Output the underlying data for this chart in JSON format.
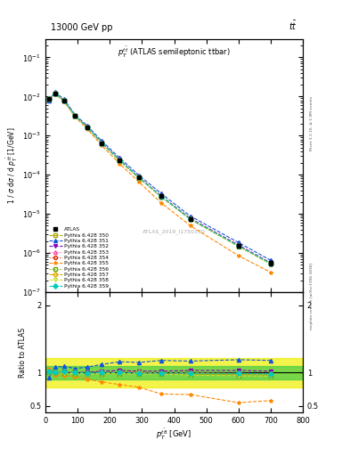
{
  "title_top": "13000 GeV pp",
  "title_right": "tt",
  "plot_title": "$p_T^{t\\bar{t}}$ (ATLAS semileptonic ttbar)",
  "ylabel_main": "1 / $\\sigma$ d$\\sigma$ / d $p_T^{t\\bar{t}}$ [1/GeV]",
  "ylabel_ratio": "Ratio to ATLAS",
  "xlabel": "$p_T^{t\\bar{t}{\\rm{l}}}$ [GeV]",
  "right_label1": "Rivet 3.1.10, ≥ 1.9M events",
  "right_label2": "mcplots.cern.ch [arXiv:1306.3436]",
  "watermark": "ATLAS_2019_I1750330",
  "x_centers": [
    10,
    30,
    57.5,
    92.5,
    130,
    175,
    230,
    290,
    360,
    450,
    600,
    700
  ],
  "atlas_y": [
    0.0085,
    0.012,
    0.0078,
    0.0032,
    0.00165,
    0.00065,
    0.000235,
    8.5e-05,
    2.8e-05,
    7.5e-06,
    1.55e-06,
    5.5e-07
  ],
  "atlas_yerr": [
    0.0005,
    0.0005,
    0.0004,
    0.00015,
    8e-05,
    3e-05,
    1.1e-05,
    4e-06,
    1.5e-06,
    5e-07,
    1.5e-07,
    6e-08
  ],
  "series": [
    {
      "label": "Pythia 6.428 350",
      "color": "#aaaa00",
      "linestyle": "--",
      "marker": "s",
      "fillstyle": "none",
      "y": [
        0.0086,
        0.0118,
        0.0077,
        0.00315,
        0.00163,
        0.00064,
        0.000232,
        8.3e-05,
        2.75e-05,
        7.3e-06,
        1.5e-06,
        5.3e-07
      ],
      "ratio": [
        1.01,
        0.98,
        0.99,
        0.98,
        0.99,
        0.98,
        0.99,
        0.98,
        0.98,
        0.97,
        0.97,
        0.96
      ]
    },
    {
      "label": "Pythia 6.428 351",
      "color": "#1155dd",
      "linestyle": "--",
      "marker": "^",
      "fillstyle": "full",
      "y": [
        0.0078,
        0.013,
        0.0085,
        0.0034,
        0.00178,
        0.00073,
        0.000272,
        9.8e-05,
        3.3e-05,
        8.8e-06,
        1.85e-06,
        6.5e-07
      ],
      "ratio": [
        0.92,
        1.08,
        1.09,
        1.06,
        1.08,
        1.12,
        1.16,
        1.15,
        1.18,
        1.17,
        1.19,
        1.18
      ]
    },
    {
      "label": "Pythia 6.428 352",
      "color": "#8800bb",
      "linestyle": "--",
      "marker": "v",
      "fillstyle": "full",
      "y": [
        0.0085,
        0.012,
        0.0079,
        0.0032,
        0.00165,
        0.00066,
        0.000243,
        8.7e-05,
        2.85e-05,
        7.7e-06,
        1.6e-06,
        5.6e-07
      ],
      "ratio": [
        1.0,
        1.0,
        1.01,
        1.0,
        1.0,
        1.02,
        1.03,
        1.02,
        1.02,
        1.03,
        1.03,
        1.02
      ]
    },
    {
      "label": "Pythia 6.428 353",
      "color": "#ff44aa",
      "linestyle": ":",
      "marker": "^",
      "fillstyle": "none",
      "y": [
        0.0086,
        0.012,
        0.0078,
        0.00318,
        0.00162,
        0.00065,
        0.000236,
        8.5e-05,
        2.78e-05,
        7.4e-06,
        1.52e-06,
        5.4e-07
      ],
      "ratio": [
        1.01,
        1.0,
        1.0,
        0.994,
        0.98,
        1.0,
        1.0,
        1.0,
        0.99,
        0.99,
        0.98,
        0.98
      ]
    },
    {
      "label": "Pythia 6.428 354",
      "color": "#dd2200",
      "linestyle": ":",
      "marker": "o",
      "fillstyle": "none",
      "y": [
        0.0086,
        0.012,
        0.0078,
        0.0032,
        0.00163,
        0.00065,
        0.000235,
        8.5e-05,
        2.78e-05,
        7.5e-06,
        1.53e-06,
        5.4e-07
      ],
      "ratio": [
        1.01,
        1.0,
        1.01,
        1.0,
        0.99,
        1.0,
        1.0,
        1.0,
        0.99,
        1.0,
        0.99,
        0.98
      ]
    },
    {
      "label": "Pythia 6.428 355",
      "color": "#ff8800",
      "linestyle": "--",
      "marker": "*",
      "fillstyle": "full",
      "y": [
        0.009,
        0.0115,
        0.0074,
        0.003,
        0.00148,
        0.00056,
        0.000193,
        6.6e-05,
        1.9e-05,
        5e-06,
        8.5e-07,
        3.2e-07
      ],
      "ratio": [
        1.06,
        0.96,
        0.95,
        0.94,
        0.9,
        0.86,
        0.82,
        0.78,
        0.68,
        0.67,
        0.55,
        0.58
      ]
    },
    {
      "label": "Pythia 6.428 356",
      "color": "#66aa00",
      "linestyle": ":",
      "marker": "s",
      "fillstyle": "none",
      "y": [
        0.0085,
        0.012,
        0.0077,
        0.00314,
        0.00161,
        0.00064,
        0.000231,
        8.3e-05,
        2.73e-05,
        7.2e-06,
        1.47e-06,
        5.2e-07
      ],
      "ratio": [
        1.0,
        1.0,
        0.99,
        0.98,
        0.98,
        0.98,
        0.98,
        0.98,
        0.975,
        0.96,
        0.95,
        0.945
      ]
    },
    {
      "label": "Pythia 6.428 357",
      "color": "#ddaa00",
      "linestyle": "--",
      "marker": "D",
      "fillstyle": "none",
      "y": [
        0.0086,
        0.012,
        0.0078,
        0.0032,
        0.00162,
        0.00065,
        0.000235,
        8.5e-05,
        2.78e-05,
        7.4e-06,
        1.52e-06,
        5.4e-07
      ],
      "ratio": [
        1.01,
        1.0,
        1.0,
        1.0,
        0.98,
        1.0,
        1.0,
        1.0,
        0.99,
        0.99,
        0.98,
        0.98
      ]
    },
    {
      "label": "Pythia 6.428 358",
      "color": "#ccdd44",
      "linestyle": "--",
      "marker": "v",
      "fillstyle": "none",
      "y": [
        0.0085,
        0.012,
        0.0077,
        0.00314,
        0.00161,
        0.00064,
        0.000231,
        8.3e-05,
        2.73e-05,
        7.2e-06,
        1.47e-06,
        5.2e-07
      ],
      "ratio": [
        1.0,
        1.0,
        0.99,
        0.98,
        0.98,
        0.98,
        0.98,
        0.975,
        0.975,
        0.96,
        0.95,
        0.945
      ]
    },
    {
      "label": "Pythia 6.428 359",
      "color": "#00ccbb",
      "linestyle": "--",
      "marker": "D",
      "fillstyle": "full",
      "y": [
        0.0086,
        0.012,
        0.0079,
        0.0032,
        0.00163,
        0.00065,
        0.000236,
        8.5e-05,
        2.78e-05,
        7.4e-06,
        1.52e-06,
        5.4e-07
      ],
      "ratio": [
        1.01,
        1.0,
        1.01,
        1.0,
        0.99,
        1.0,
        1.0,
        0.99,
        0.99,
        0.99,
        0.985,
        0.98
      ]
    }
  ],
  "band_yellow_lo": 0.78,
  "band_yellow_hi": 1.22,
  "band_green_lo": 0.9,
  "band_green_hi": 1.1,
  "ylim_main": [
    1e-07,
    0.3
  ],
  "ylim_ratio": [
    0.4,
    2.2
  ],
  "ratio_yticks": [
    0.5,
    1.0,
    2.0
  ],
  "ratio_yticklabels": [
    "0.5",
    "1",
    "2"
  ],
  "xlim": [
    0,
    800
  ]
}
